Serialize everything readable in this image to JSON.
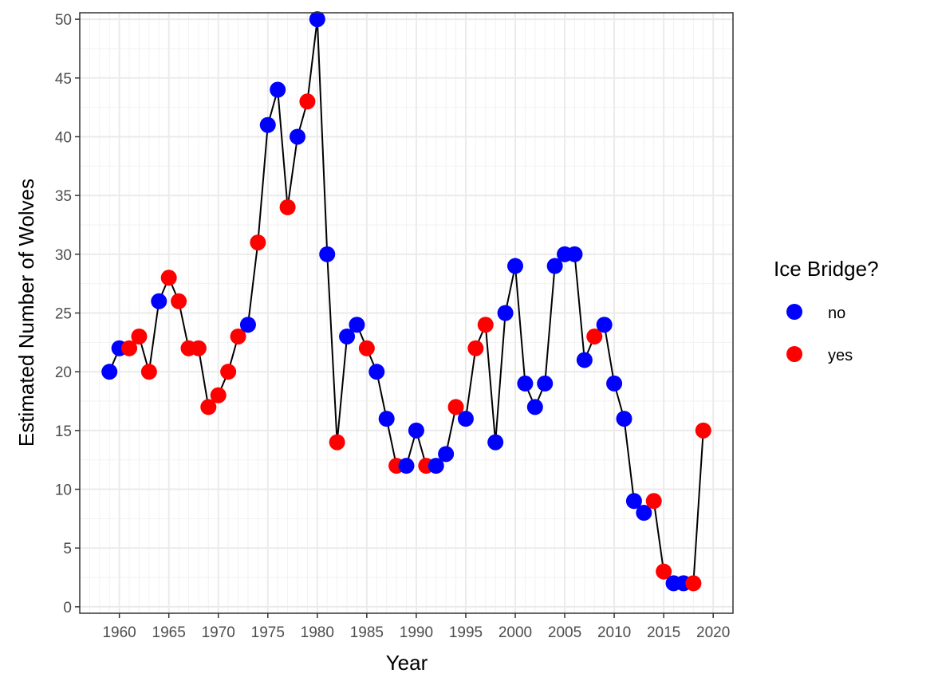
{
  "chart_data": {
    "type": "line",
    "title": "",
    "xlabel": "Year",
    "ylabel": "Estimated Number of Wolves",
    "xlim": [
      1957.5,
      1959.5
    ],
    "x_range": [
      1956,
      2022
    ],
    "ylim": [
      0,
      50
    ],
    "x_ticks": [
      1960,
      1965,
      1970,
      1975,
      1980,
      1985,
      1990,
      1995,
      2000,
      2005,
      2010,
      2015,
      2020
    ],
    "y_ticks": [
      0,
      5,
      10,
      15,
      20,
      25,
      30,
      35,
      40,
      45,
      50
    ],
    "grid": true,
    "line_color": "#000000",
    "legend": {
      "title": "Ice Bridge?",
      "placement": "right",
      "entries": [
        {
          "label": "no",
          "color": "#0000ff"
        },
        {
          "label": "yes",
          "color": "#ff0000"
        }
      ]
    },
    "points": [
      {
        "x": 1959,
        "y": 20,
        "ice": "no"
      },
      {
        "x": 1960,
        "y": 22,
        "ice": "no"
      },
      {
        "x": 1961,
        "y": 22,
        "ice": "yes"
      },
      {
        "x": 1962,
        "y": 23,
        "ice": "yes"
      },
      {
        "x": 1963,
        "y": 20,
        "ice": "yes"
      },
      {
        "x": 1964,
        "y": 26,
        "ice": "no"
      },
      {
        "x": 1965,
        "y": 28,
        "ice": "yes"
      },
      {
        "x": 1966,
        "y": 26,
        "ice": "yes"
      },
      {
        "x": 1967,
        "y": 22,
        "ice": "yes"
      },
      {
        "x": 1968,
        "y": 22,
        "ice": "yes"
      },
      {
        "x": 1969,
        "y": 17,
        "ice": "yes"
      },
      {
        "x": 1970,
        "y": 18,
        "ice": "yes"
      },
      {
        "x": 1971,
        "y": 20,
        "ice": "yes"
      },
      {
        "x": 1972,
        "y": 23,
        "ice": "yes"
      },
      {
        "x": 1973,
        "y": 24,
        "ice": "no"
      },
      {
        "x": 1974,
        "y": 31,
        "ice": "yes"
      },
      {
        "x": 1975,
        "y": 41,
        "ice": "no"
      },
      {
        "x": 1976,
        "y": 44,
        "ice": "no"
      },
      {
        "x": 1977,
        "y": 34,
        "ice": "yes"
      },
      {
        "x": 1978,
        "y": 40,
        "ice": "no"
      },
      {
        "x": 1979,
        "y": 43,
        "ice": "yes"
      },
      {
        "x": 1980,
        "y": 50,
        "ice": "no"
      },
      {
        "x": 1981,
        "y": 30,
        "ice": "no"
      },
      {
        "x": 1982,
        "y": 14,
        "ice": "yes"
      },
      {
        "x": 1983,
        "y": 23,
        "ice": "no"
      },
      {
        "x": 1984,
        "y": 24,
        "ice": "no"
      },
      {
        "x": 1985,
        "y": 22,
        "ice": "yes"
      },
      {
        "x": 1986,
        "y": 20,
        "ice": "no"
      },
      {
        "x": 1987,
        "y": 16,
        "ice": "no"
      },
      {
        "x": 1988,
        "y": 12,
        "ice": "yes"
      },
      {
        "x": 1989,
        "y": 12,
        "ice": "no"
      },
      {
        "x": 1990,
        "y": 15,
        "ice": "no"
      },
      {
        "x": 1991,
        "y": 12,
        "ice": "yes"
      },
      {
        "x": 1992,
        "y": 12,
        "ice": "no"
      },
      {
        "x": 1993,
        "y": 13,
        "ice": "no"
      },
      {
        "x": 1994,
        "y": 17,
        "ice": "yes"
      },
      {
        "x": 1995,
        "y": 16,
        "ice": "no"
      },
      {
        "x": 1996,
        "y": 22,
        "ice": "yes"
      },
      {
        "x": 1997,
        "y": 24,
        "ice": "yes"
      },
      {
        "x": 1998,
        "y": 14,
        "ice": "no"
      },
      {
        "x": 1999,
        "y": 25,
        "ice": "no"
      },
      {
        "x": 2000,
        "y": 29,
        "ice": "no"
      },
      {
        "x": 2001,
        "y": 19,
        "ice": "no"
      },
      {
        "x": 2002,
        "y": 17,
        "ice": "no"
      },
      {
        "x": 2003,
        "y": 19,
        "ice": "no"
      },
      {
        "x": 2004,
        "y": 29,
        "ice": "no"
      },
      {
        "x": 2005,
        "y": 30,
        "ice": "no"
      },
      {
        "x": 2006,
        "y": 30,
        "ice": "no"
      },
      {
        "x": 2007,
        "y": 21,
        "ice": "no"
      },
      {
        "x": 2008,
        "y": 23,
        "ice": "yes"
      },
      {
        "x": 2009,
        "y": 24,
        "ice": "no"
      },
      {
        "x": 2010,
        "y": 19,
        "ice": "no"
      },
      {
        "x": 2011,
        "y": 16,
        "ice": "no"
      },
      {
        "x": 2012,
        "y": 9,
        "ice": "no"
      },
      {
        "x": 2013,
        "y": 8,
        "ice": "no"
      },
      {
        "x": 2014,
        "y": 9,
        "ice": "yes"
      },
      {
        "x": 2015,
        "y": 3,
        "ice": "yes"
      },
      {
        "x": 2016,
        "y": 2,
        "ice": "no"
      },
      {
        "x": 2017,
        "y": 2,
        "ice": "no"
      },
      {
        "x": 2018,
        "y": 2,
        "ice": "yes"
      },
      {
        "x": 2019,
        "y": 15,
        "ice": "yes"
      }
    ]
  }
}
